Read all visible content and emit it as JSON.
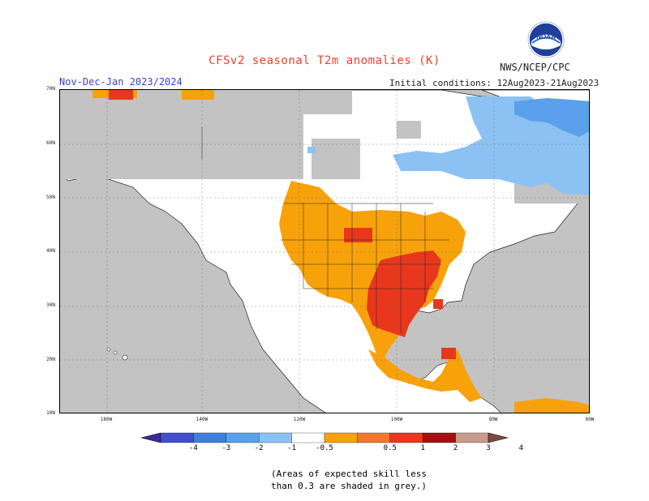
{
  "header": {
    "title": "CFSv2 seasonal T2m anomalies (K)",
    "season": "Nov-Dec-Jan 2023/2024",
    "initial_conditions": "Initial conditions: 12Aug2023-21Aug2023",
    "organization": "NWS/NCEP/CPC",
    "logo_text": "NOAA"
  },
  "map": {
    "lat_labels": [
      "70N",
      "60N",
      "50N",
      "40N",
      "30N",
      "20N",
      "10N"
    ],
    "lon_labels": [
      "180W",
      "140W",
      "120W",
      "100W",
      "80W",
      "60W"
    ]
  },
  "colorbar": {
    "ticks": [
      "-4",
      "-3",
      "-2",
      "-1",
      "-0.5",
      "0.5",
      "1",
      "2",
      "3",
      "4"
    ],
    "colors": [
      "#3b2a9e",
      "#3f4fd0",
      "#3f7fdf",
      "#5aa0ea",
      "#8cc2f3",
      "#ffffff",
      "#f7a20a",
      "#f3782b",
      "#e9371d",
      "#a50f0f",
      "#c99a8a",
      "#7a4b3e"
    ]
  },
  "legend_colors": {
    "no_skill": "#c3c3c3",
    "warm_1": "#f7a20a",
    "warm_2": "#f3782b",
    "warm_3": "#e9371d",
    "cold_1": "#8cc2f3",
    "cold_2": "#5aa0ea",
    "cold_3": "#3f7fdf"
  },
  "note": {
    "line1": "(Areas of expected skill less",
    "line2": "than 0.3 are shaded in grey.)"
  }
}
